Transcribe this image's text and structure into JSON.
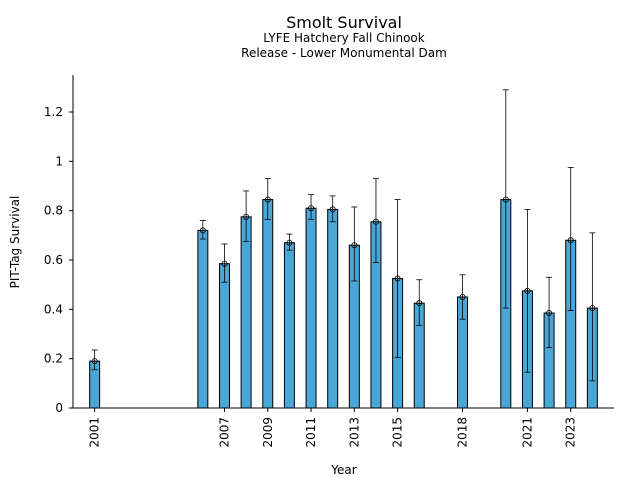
{
  "chart_data": {
    "type": "bar",
    "title": "Smolt Survival",
    "subtitle_lines": [
      "LYFE Hatchery Fall Chinook",
      "Release - Lower Monumental Dam"
    ],
    "xlabel": "Year",
    "ylabel": "PIT-Tag Survival",
    "ylim": [
      0,
      1.35
    ],
    "xlim": [
      2000.0,
      2025.0
    ],
    "yticks": [
      0,
      0.2,
      0.4,
      0.6,
      0.8,
      1,
      1.2
    ],
    "ytick_labels": [
      "0",
      "0.2",
      "0.4",
      "0.6",
      "0.8",
      "1",
      "1.2"
    ],
    "xticks": [
      2001,
      2007,
      2009,
      2011,
      2013,
      2015,
      2018,
      2021,
      2023
    ],
    "xtick_labels": [
      "2001",
      "2007",
      "2009",
      "2011",
      "2013",
      "2015",
      "2018",
      "2021",
      "2023"
    ],
    "bar_color": "#4aa6d6",
    "series": [
      {
        "x": [
          2001,
          2006,
          2007,
          2008,
          2009,
          2010,
          2011,
          2012,
          2013,
          2014,
          2015,
          2016,
          2018,
          2020,
          2021,
          2022,
          2023,
          2024
        ],
        "values": [
          0.19,
          0.72,
          0.585,
          0.775,
          0.845,
          0.67,
          0.81,
          0.805,
          0.66,
          0.755,
          0.525,
          0.425,
          0.45,
          0.845,
          0.475,
          0.385,
          0.68,
          0.405
        ],
        "err_low": [
          0.155,
          0.685,
          0.51,
          0.675,
          0.765,
          0.64,
          0.765,
          0.755,
          0.515,
          0.59,
          0.205,
          0.335,
          0.36,
          0.405,
          0.145,
          0.245,
          0.395,
          0.11
        ],
        "err_high": [
          0.235,
          0.76,
          0.665,
          0.88,
          0.93,
          0.705,
          0.865,
          0.86,
          0.815,
          0.93,
          0.845,
          0.52,
          0.54,
          1.29,
          0.805,
          0.53,
          0.975,
          0.71
        ]
      }
    ]
  }
}
